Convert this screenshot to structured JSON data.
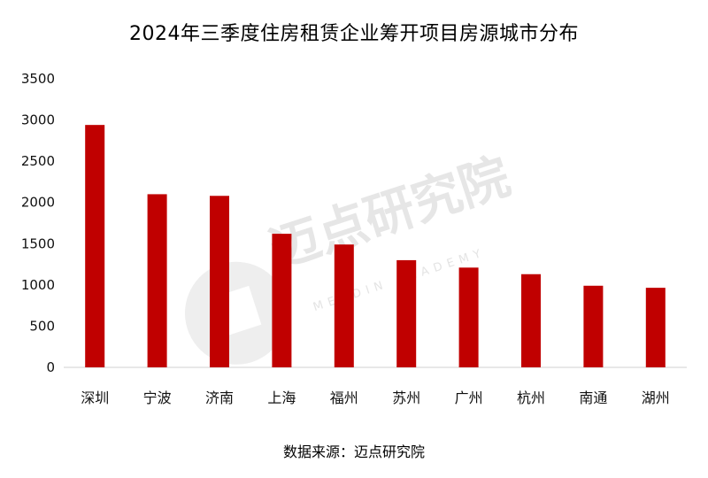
{
  "chart_data": {
    "type": "bar",
    "title": "2024年三季度住房租赁企业筹开项目房源城市分布",
    "categories": [
      "深圳",
      "宁波",
      "济南",
      "上海",
      "福州",
      "苏州",
      "广州",
      "杭州",
      "南通",
      "湖州"
    ],
    "values": [
      2940,
      2100,
      2080,
      1620,
      1490,
      1300,
      1210,
      1130,
      990,
      965
    ],
    "ylim": [
      0,
      3500
    ],
    "yticks": [
      0,
      500,
      1000,
      1500,
      2000,
      2500,
      3000,
      3500
    ],
    "xlabel": "",
    "ylabel": "",
    "grid": false,
    "bar_color": "#c00000"
  },
  "source_note": "数据来源：迈点研究院",
  "watermark": {
    "text": "迈点研究院",
    "subtext": "MEADIN ACADEMY",
    "icon": "meadin-logo-icon"
  }
}
